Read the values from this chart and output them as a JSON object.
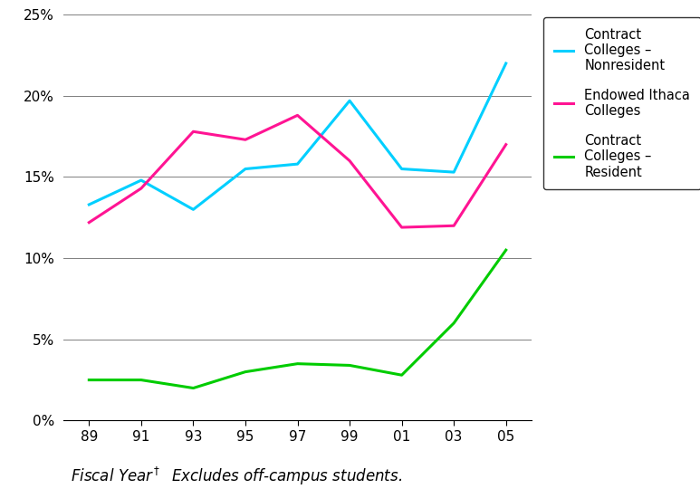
{
  "x_values": [
    89,
    91,
    93,
    95,
    97,
    99,
    101,
    103,
    105
  ],
  "x_labels": [
    "89",
    "91",
    "93",
    "95",
    "97",
    "99",
    "01",
    "03",
    "05"
  ],
  "contract_nonresident": [
    0.133,
    0.148,
    0.13,
    0.155,
    0.158,
    0.197,
    0.155,
    0.153,
    0.22
  ],
  "endowed_ithaca": [
    0.122,
    0.143,
    0.178,
    0.173,
    0.188,
    0.16,
    0.119,
    0.12,
    0.17
  ],
  "contract_resident": [
    0.025,
    0.025,
    0.02,
    0.03,
    0.035,
    0.034,
    0.028,
    0.06,
    0.105
  ],
  "color_nonresident": "#00CFFF",
  "color_endowed": "#FF1493",
  "color_resident": "#00CC00",
  "xlabel": "Fiscal Year",
  "xlabel_note": "† Excludes off-campus students.",
  "ylim": [
    0,
    0.25
  ],
  "yticks": [
    0.0,
    0.05,
    0.1,
    0.15,
    0.2,
    0.25
  ],
  "legend_label_nonresident": "Contract\nColleges –\nNonresident",
  "legend_label_endowed": "Endowed Ithaca\nColleges",
  "legend_label_resident": "Contract\nColleges –\nResident"
}
